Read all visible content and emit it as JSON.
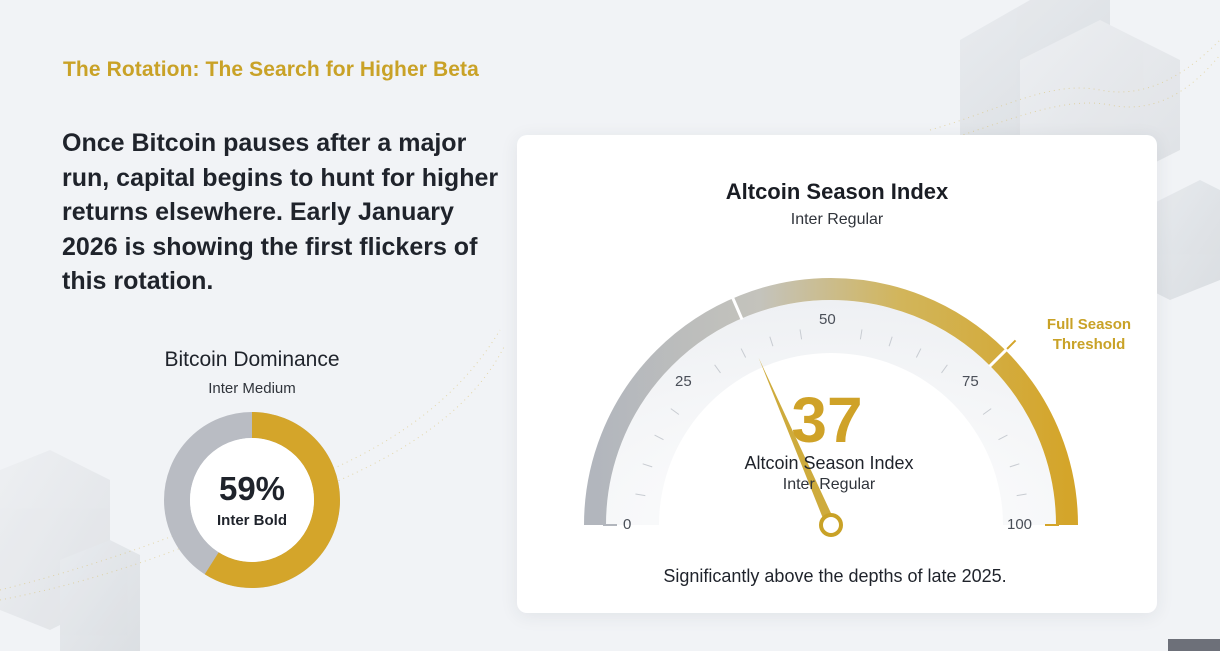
{
  "eyebrow": "The Rotation: The Search for Higher Beta",
  "lede": "Once Bitcoin pauses after a major run, capital begins to hunt for higher returns elsewhere. Early January 2026 is showing the first flickers of this rotation.",
  "dominance": {
    "title": "Bitcoin Dominance",
    "font_note": "Inter Medium",
    "value_label": "59%",
    "value_font_note": "Inter Bold",
    "value": 59,
    "colors": {
      "bitcoin": "#d4a52a",
      "rest": "#b9bcc3"
    }
  },
  "gauge": {
    "title": "Altcoin Season Index",
    "title_font_note": "Inter Regular",
    "value_label": "37",
    "value": 37,
    "inner_label": "Altcoin Season Index",
    "inner_font_note": "Inter Regular",
    "scale_min": 0,
    "scale_max": 100,
    "ticks": [
      "0",
      "25",
      "50",
      "75",
      "100"
    ],
    "threshold_label": "Full Season Threshold",
    "threshold_value": 75,
    "footnote": "Significantly above the depths of late 2025.",
    "colors": {
      "low": "#b2b6bd",
      "high": "#d4a52a",
      "needle": "#c9a227"
    }
  }
}
